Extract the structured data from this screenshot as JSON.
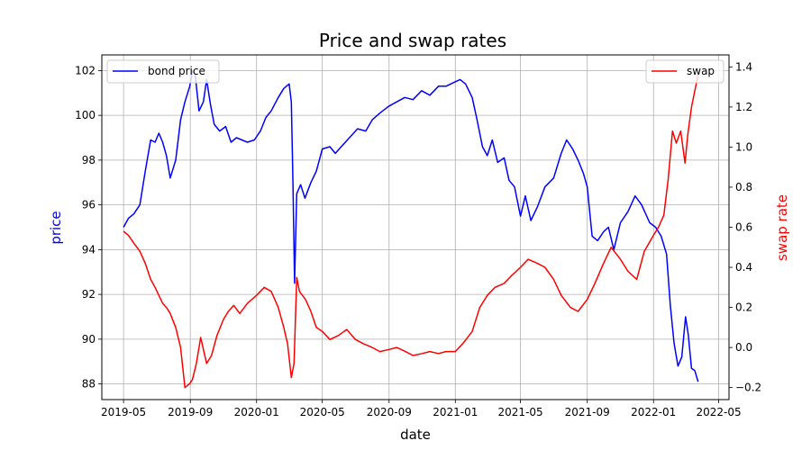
{
  "chart_data": {
    "type": "line",
    "title": "Price and swap rates",
    "xlabel": "date",
    "x_ticks": [
      "2019-05",
      "2019-09",
      "2020-01",
      "2020-05",
      "2020-09",
      "2021-01",
      "2021-05",
      "2021-09",
      "2022-01",
      "2022-05"
    ],
    "x_range": [
      "2019-03-22",
      "2022-05-20"
    ],
    "grid": true,
    "left_axis": {
      "label": "price",
      "label_color": "#0000ff",
      "ylim": [
        87.3,
        102.7
      ],
      "ticks": [
        "88",
        "90",
        "92",
        "94",
        "96",
        "98",
        "100",
        "102"
      ]
    },
    "right_axis": {
      "label": "swap rate",
      "label_color": "#ff0000",
      "ylim": [
        -0.26,
        1.46
      ],
      "ticks": [
        "−0.2",
        "0.0",
        "0.2",
        "0.4",
        "0.6",
        "0.8",
        "1.0",
        "1.2",
        "1.4"
      ]
    },
    "series": [
      {
        "name": "bond price",
        "axis": "left",
        "color": "#0000ff",
        "legend_position": "upper-left",
        "points": [
          [
            "2019-05-01",
            95.0
          ],
          [
            "2019-05-10",
            95.4
          ],
          [
            "2019-05-20",
            95.6
          ],
          [
            "2019-05-31",
            96.0
          ],
          [
            "2019-06-10",
            97.5
          ],
          [
            "2019-06-20",
            98.9
          ],
          [
            "2019-06-28",
            98.8
          ],
          [
            "2019-07-05",
            99.2
          ],
          [
            "2019-07-12",
            98.8
          ],
          [
            "2019-07-19",
            98.2
          ],
          [
            "2019-07-26",
            97.2
          ],
          [
            "2019-08-05",
            98.0
          ],
          [
            "2019-08-14",
            99.8
          ],
          [
            "2019-08-22",
            100.6
          ],
          [
            "2019-08-31",
            101.3
          ],
          [
            "2019-09-05",
            102.0
          ],
          [
            "2019-09-10",
            101.8
          ],
          [
            "2019-09-17",
            100.2
          ],
          [
            "2019-09-25",
            100.6
          ],
          [
            "2019-10-01",
            101.6
          ],
          [
            "2019-10-08",
            100.5
          ],
          [
            "2019-10-15",
            99.6
          ],
          [
            "2019-10-25",
            99.3
          ],
          [
            "2019-11-05",
            99.5
          ],
          [
            "2019-11-15",
            98.8
          ],
          [
            "2019-11-25",
            99.0
          ],
          [
            "2019-12-05",
            98.9
          ],
          [
            "2019-12-15",
            98.8
          ],
          [
            "2019-12-28",
            98.9
          ],
          [
            "2020-01-08",
            99.3
          ],
          [
            "2020-01-18",
            99.9
          ],
          [
            "2020-01-28",
            100.2
          ],
          [
            "2020-02-10",
            100.8
          ],
          [
            "2020-02-20",
            101.2
          ],
          [
            "2020-03-01",
            101.4
          ],
          [
            "2020-03-05",
            100.6
          ],
          [
            "2020-03-08",
            97.0
          ],
          [
            "2020-03-11",
            92.5
          ],
          [
            "2020-03-15",
            96.5
          ],
          [
            "2020-03-22",
            96.9
          ],
          [
            "2020-03-30",
            96.3
          ],
          [
            "2020-04-10",
            97.0
          ],
          [
            "2020-04-20",
            97.5
          ],
          [
            "2020-05-01",
            98.5
          ],
          [
            "2020-05-15",
            98.6
          ],
          [
            "2020-05-25",
            98.3
          ],
          [
            "2020-06-05",
            98.6
          ],
          [
            "2020-06-20",
            99.0
          ],
          [
            "2020-07-05",
            99.4
          ],
          [
            "2020-07-20",
            99.3
          ],
          [
            "2020-08-01",
            99.8
          ],
          [
            "2020-08-15",
            100.1
          ],
          [
            "2020-08-31",
            100.4
          ],
          [
            "2020-09-15",
            100.6
          ],
          [
            "2020-09-30",
            100.8
          ],
          [
            "2020-10-15",
            100.7
          ],
          [
            "2020-10-31",
            101.1
          ],
          [
            "2020-11-15",
            100.9
          ],
          [
            "2020-12-01",
            101.3
          ],
          [
            "2020-12-15",
            101.3
          ],
          [
            "2021-01-01",
            101.5
          ],
          [
            "2021-01-10",
            101.6
          ],
          [
            "2021-01-20",
            101.4
          ],
          [
            "2021-02-01",
            100.8
          ],
          [
            "2021-02-10",
            99.8
          ],
          [
            "2021-02-20",
            98.6
          ],
          [
            "2021-03-01",
            98.2
          ],
          [
            "2021-03-10",
            98.9
          ],
          [
            "2021-03-20",
            97.9
          ],
          [
            "2021-04-01",
            98.1
          ],
          [
            "2021-04-10",
            97.1
          ],
          [
            "2021-04-20",
            96.8
          ],
          [
            "2021-05-01",
            95.5
          ],
          [
            "2021-05-10",
            96.4
          ],
          [
            "2021-05-20",
            95.3
          ],
          [
            "2021-06-01",
            95.9
          ],
          [
            "2021-06-15",
            96.8
          ],
          [
            "2021-07-01",
            97.2
          ],
          [
            "2021-07-15",
            98.3
          ],
          [
            "2021-07-25",
            98.9
          ],
          [
            "2021-08-05",
            98.5
          ],
          [
            "2021-08-15",
            98.0
          ],
          [
            "2021-08-25",
            97.4
          ],
          [
            "2021-09-01",
            96.8
          ],
          [
            "2021-09-10",
            94.6
          ],
          [
            "2021-09-20",
            94.4
          ],
          [
            "2021-10-01",
            94.8
          ],
          [
            "2021-10-10",
            95.0
          ],
          [
            "2021-10-20",
            94.0
          ],
          [
            "2021-11-01",
            95.2
          ],
          [
            "2021-11-15",
            95.7
          ],
          [
            "2021-11-28",
            96.4
          ],
          [
            "2021-12-10",
            96.0
          ],
          [
            "2021-12-25",
            95.2
          ],
          [
            "2022-01-05",
            95.0
          ],
          [
            "2022-01-15",
            94.6
          ],
          [
            "2022-01-25",
            93.8
          ],
          [
            "2022-02-01",
            91.5
          ],
          [
            "2022-02-08",
            89.8
          ],
          [
            "2022-02-15",
            88.8
          ],
          [
            "2022-02-22",
            89.2
          ],
          [
            "2022-03-01",
            91.0
          ],
          [
            "2022-03-06",
            90.2
          ],
          [
            "2022-03-12",
            88.7
          ],
          [
            "2022-03-18",
            88.6
          ],
          [
            "2022-03-24",
            88.1
          ]
        ]
      },
      {
        "name": "swap",
        "axis": "right",
        "color": "#ff0000",
        "legend_position": "upper-right",
        "points": [
          [
            "2019-05-01",
            0.58
          ],
          [
            "2019-05-10",
            0.56
          ],
          [
            "2019-05-20",
            0.52
          ],
          [
            "2019-05-31",
            0.48
          ],
          [
            "2019-06-10",
            0.42
          ],
          [
            "2019-06-20",
            0.34
          ],
          [
            "2019-06-28",
            0.3
          ],
          [
            "2019-07-05",
            0.26
          ],
          [
            "2019-07-12",
            0.22
          ],
          [
            "2019-07-19",
            0.2
          ],
          [
            "2019-07-26",
            0.17
          ],
          [
            "2019-08-05",
            0.1
          ],
          [
            "2019-08-14",
            0.0
          ],
          [
            "2019-08-22",
            -0.2
          ],
          [
            "2019-08-31",
            -0.18
          ],
          [
            "2019-09-05",
            -0.16
          ],
          [
            "2019-09-12",
            -0.08
          ],
          [
            "2019-09-20",
            0.05
          ],
          [
            "2019-10-01",
            -0.08
          ],
          [
            "2019-10-10",
            -0.04
          ],
          [
            "2019-10-20",
            0.06
          ],
          [
            "2019-11-01",
            0.14
          ],
          [
            "2019-11-10",
            0.18
          ],
          [
            "2019-11-20",
            0.21
          ],
          [
            "2019-12-01",
            0.17
          ],
          [
            "2019-12-15",
            0.22
          ],
          [
            "2020-01-01",
            0.26
          ],
          [
            "2020-01-15",
            0.3
          ],
          [
            "2020-01-28",
            0.28
          ],
          [
            "2020-02-10",
            0.2
          ],
          [
            "2020-02-20",
            0.1
          ],
          [
            "2020-02-27",
            0.02
          ],
          [
            "2020-03-05",
            -0.15
          ],
          [
            "2020-03-10",
            -0.08
          ],
          [
            "2020-03-15",
            0.35
          ],
          [
            "2020-03-20",
            0.28
          ],
          [
            "2020-03-31",
            0.24
          ],
          [
            "2020-04-10",
            0.18
          ],
          [
            "2020-04-20",
            0.1
          ],
          [
            "2020-05-01",
            0.08
          ],
          [
            "2020-05-15",
            0.04
          ],
          [
            "2020-05-31",
            0.06
          ],
          [
            "2020-06-15",
            0.09
          ],
          [
            "2020-07-01",
            0.04
          ],
          [
            "2020-07-15",
            0.02
          ],
          [
            "2020-08-01",
            0.0
          ],
          [
            "2020-08-15",
            -0.02
          ],
          [
            "2020-09-01",
            -0.01
          ],
          [
            "2020-09-15",
            0.0
          ],
          [
            "2020-10-01",
            -0.02
          ],
          [
            "2020-10-15",
            -0.04
          ],
          [
            "2020-11-01",
            -0.03
          ],
          [
            "2020-11-15",
            -0.02
          ],
          [
            "2020-12-01",
            -0.03
          ],
          [
            "2020-12-15",
            -0.02
          ],
          [
            "2021-01-01",
            -0.02
          ],
          [
            "2021-01-15",
            0.02
          ],
          [
            "2021-02-01",
            0.08
          ],
          [
            "2021-02-15",
            0.2
          ],
          [
            "2021-03-01",
            0.26
          ],
          [
            "2021-03-15",
            0.3
          ],
          [
            "2021-04-01",
            0.32
          ],
          [
            "2021-04-15",
            0.36
          ],
          [
            "2021-05-01",
            0.4
          ],
          [
            "2021-05-15",
            0.44
          ],
          [
            "2021-06-01",
            0.42
          ],
          [
            "2021-06-15",
            0.4
          ],
          [
            "2021-07-01",
            0.34
          ],
          [
            "2021-07-15",
            0.26
          ],
          [
            "2021-08-01",
            0.2
          ],
          [
            "2021-08-15",
            0.18
          ],
          [
            "2021-09-01",
            0.24
          ],
          [
            "2021-09-15",
            0.32
          ],
          [
            "2021-10-01",
            0.42
          ],
          [
            "2021-10-15",
            0.5
          ],
          [
            "2021-11-01",
            0.44
          ],
          [
            "2021-11-15",
            0.38
          ],
          [
            "2021-12-01",
            0.34
          ],
          [
            "2021-12-15",
            0.48
          ],
          [
            "2022-01-01",
            0.56
          ],
          [
            "2022-01-10",
            0.6
          ],
          [
            "2022-01-20",
            0.66
          ],
          [
            "2022-01-28",
            0.84
          ],
          [
            "2022-02-05",
            1.08
          ],
          [
            "2022-02-12",
            1.02
          ],
          [
            "2022-02-20",
            1.08
          ],
          [
            "2022-02-28",
            0.92
          ],
          [
            "2022-03-05",
            1.06
          ],
          [
            "2022-03-12",
            1.2
          ],
          [
            "2022-03-18",
            1.28
          ],
          [
            "2022-03-24",
            1.36
          ]
        ]
      }
    ]
  }
}
